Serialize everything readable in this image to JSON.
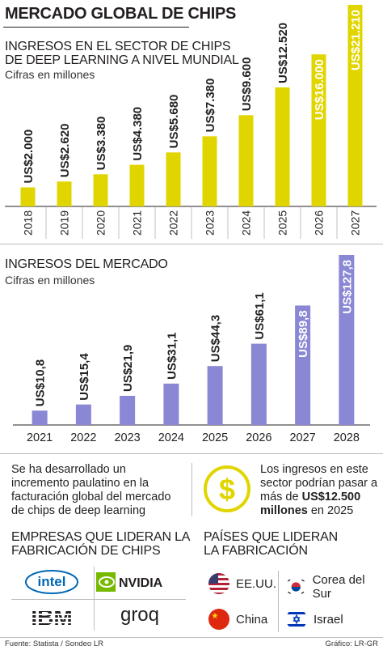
{
  "header": {
    "title": "MERCADO GLOBAL DE CHIPS"
  },
  "chart_data": [
    {
      "type": "bar",
      "title_line1": "INGRESOS EN EL SECTOR DE CHIPS",
      "title_line2": "DE DEEP LEARNING A NIVEL MUNDIAL",
      "subtitle": "Cifras en millones",
      "categories": [
        "2018",
        "2019",
        "2020",
        "2021",
        "2022",
        "2023",
        "2024",
        "2025",
        "2026",
        "2027"
      ],
      "values": [
        2000,
        2620,
        3380,
        4380,
        5680,
        7380,
        9600,
        12520,
        16000,
        21210
      ],
      "labels": [
        "US$2.000",
        "US$2.620",
        "US$3.380",
        "US$4.380",
        "US$5.680",
        "US$7.380",
        "US$9.600",
        "US$12.520",
        "US$16.000",
        "US$21.210"
      ],
      "color": "#e1d500",
      "ylim": [
        0,
        21210
      ],
      "projected_from_index": 8
    },
    {
      "type": "bar",
      "title": "INGRESOS DEL MERCADO",
      "subtitle": "Cifras en millones",
      "categories": [
        "2021",
        "2022",
        "2023",
        "2024",
        "2025",
        "2026",
        "2027",
        "2028"
      ],
      "values": [
        10.8,
        15.4,
        21.9,
        31.1,
        44.3,
        61.1,
        89.8,
        127.8
      ],
      "labels": [
        "US$10,8",
        "US$15,4",
        "US$21,9",
        "US$31,1",
        "US$44,3",
        "US$61,1",
        "US$89,8",
        "US$127,8"
      ],
      "color": "#8a87d4",
      "ylim": [
        0,
        127.8
      ],
      "projected_from_index": 6
    }
  ],
  "info": {
    "left_text": "Se ha desarrollado un incremento paulatino en la facturación global del mercado de chips de deep learning",
    "right_text_1": "Los ingresos en este sector podrían pasar a más de ",
    "right_bold": "US$12.500 millones",
    "right_text_2": " en 2025",
    "icon": "dollar-coin-icon",
    "icon_color": "#e1d500"
  },
  "companies": {
    "heading_line1": "EMPRESAS QUE LIDERAN LA",
    "heading_line2": "FABRICACIÓN DE CHIPS",
    "logos": [
      "intel",
      "NVIDIA",
      "IBM",
      "groq"
    ]
  },
  "countries": {
    "heading_line1": "PAÍSES QUE LIDERAN",
    "heading_line2": "LA FABRICACIÓN",
    "items": [
      {
        "name": "EE.UU.",
        "icon": "us-flag-icon"
      },
      {
        "name": "Corea del Sur",
        "icon": "south-korea-flag-icon"
      },
      {
        "name": "China",
        "icon": "china-flag-icon"
      },
      {
        "name": "Israel",
        "icon": "israel-flag-icon"
      }
    ]
  },
  "footer": {
    "source": "Fuente: Statista / Sondeo LR",
    "credit": "Gráfico: LR-GR"
  }
}
